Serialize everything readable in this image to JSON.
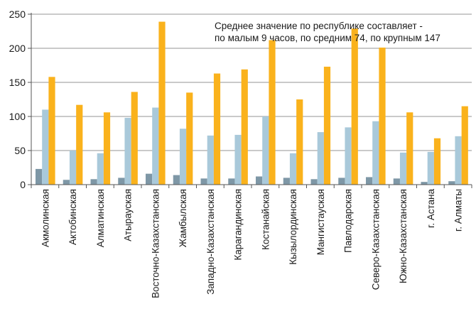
{
  "chart_data": {
    "type": "bar",
    "categories": [
      "Акмолинская",
      "Актобинская",
      "Алматинская",
      "Атырауская",
      "Восточно-Казахстанская",
      "Жамбылская",
      "Западно-Казахстанская",
      "Карагандинская",
      "Костанайская",
      "Кызылординская",
      "Мангистауская",
      "Павлодарская",
      "Северо-Казахстанская",
      "Южно-Казахстанская",
      "г. Астана",
      "г. Алматы"
    ],
    "series": [
      {
        "values": [
          23,
          7,
          8,
          10,
          16,
          14,
          9,
          9,
          12,
          10,
          8,
          10,
          11,
          9,
          4,
          5
        ],
        "color": "#7e97a6"
      },
      {
        "values": [
          110,
          50,
          46,
          98,
          113,
          82,
          72,
          73,
          100,
          46,
          77,
          84,
          93,
          47,
          48,
          71
        ],
        "color": "#a9c9da"
      },
      {
        "values": [
          158,
          117,
          106,
          136,
          239,
          135,
          163,
          169,
          212,
          125,
          173,
          229,
          201,
          106,
          68,
          115
        ],
        "color": "#fab21c"
      }
    ],
    "ylim": [
      0,
      250
    ],
    "yticks": [
      0,
      50,
      100,
      150,
      200,
      250
    ],
    "grid": true,
    "annotation": {
      "line1": "Среднее значение по республике составляет -",
      "line2": "по малым 9 часов, по средним 74, по крупным 147"
    }
  }
}
